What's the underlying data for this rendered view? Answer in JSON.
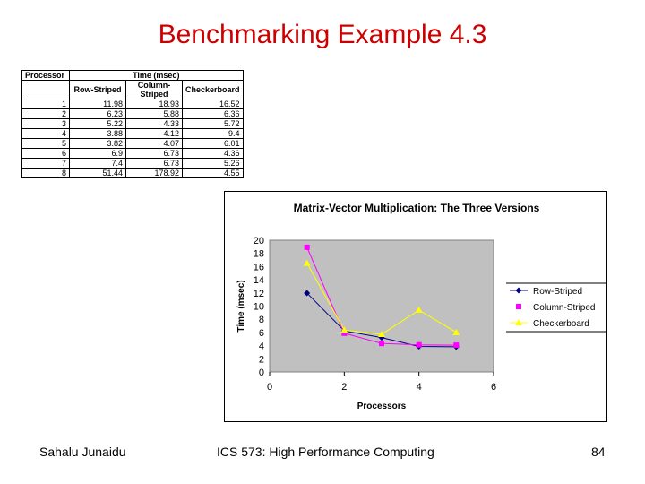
{
  "slide": {
    "title": "Benchmarking Example 4.3",
    "footer_left": "Sahalu Junaidu",
    "footer_center": "ICS 573: High Performance Computing",
    "page_number": "84"
  },
  "table": {
    "header_processor": "Processor",
    "header_time": "Time (msec)",
    "columns": [
      "Row-Striped",
      "Column-Striped",
      "Checkerboard"
    ],
    "rows": [
      {
        "p": "1",
        "v": [
          "11.98",
          "18.93",
          "16.52"
        ]
      },
      {
        "p": "2",
        "v": [
          "6.23",
          "5.88",
          "6.36"
        ]
      },
      {
        "p": "3",
        "v": [
          "5.22",
          "4.33",
          "5.72"
        ]
      },
      {
        "p": "4",
        "v": [
          "3.88",
          "4.12",
          "9.4"
        ]
      },
      {
        "p": "5",
        "v": [
          "3.82",
          "4.07",
          "6.01"
        ]
      },
      {
        "p": "6",
        "v": [
          "6.9",
          "6.73",
          "4.36"
        ]
      },
      {
        "p": "7",
        "v": [
          "7.4",
          "6.73",
          "5.26"
        ]
      },
      {
        "p": "8",
        "v": [
          "51.44",
          "178.92",
          "4.55"
        ]
      }
    ]
  },
  "chart_data": {
    "type": "line",
    "title": "Matrix-Vector Multiplication: The Three Versions",
    "xlabel": "Processors",
    "ylabel": "Time (msec)",
    "xlim": [
      0,
      6
    ],
    "ylim": [
      0,
      20
    ],
    "xticks": [
      0,
      2,
      4,
      6
    ],
    "yticks": [
      0,
      2,
      4,
      6,
      8,
      10,
      12,
      14,
      16,
      18,
      20
    ],
    "plot_background": "#c0c0c0",
    "legend_position": "right",
    "series": [
      {
        "name": "Row-Striped",
        "color": "#000080",
        "marker": "diamond",
        "x": [
          1,
          2,
          3,
          4,
          5
        ],
        "y": [
          11.98,
          6.23,
          5.22,
          3.88,
          3.82
        ]
      },
      {
        "name": "Column-Striped",
        "color": "#ff00ff",
        "marker": "square",
        "x": [
          1,
          2,
          3,
          4,
          5
        ],
        "y": [
          18.93,
          5.88,
          4.33,
          4.12,
          4.07
        ]
      },
      {
        "name": "Checkerboard",
        "color": "#ffff00",
        "marker": "triangle",
        "x": [
          1,
          2,
          3,
          4,
          5
        ],
        "y": [
          16.52,
          6.36,
          5.72,
          9.4,
          6.01
        ]
      }
    ]
  }
}
